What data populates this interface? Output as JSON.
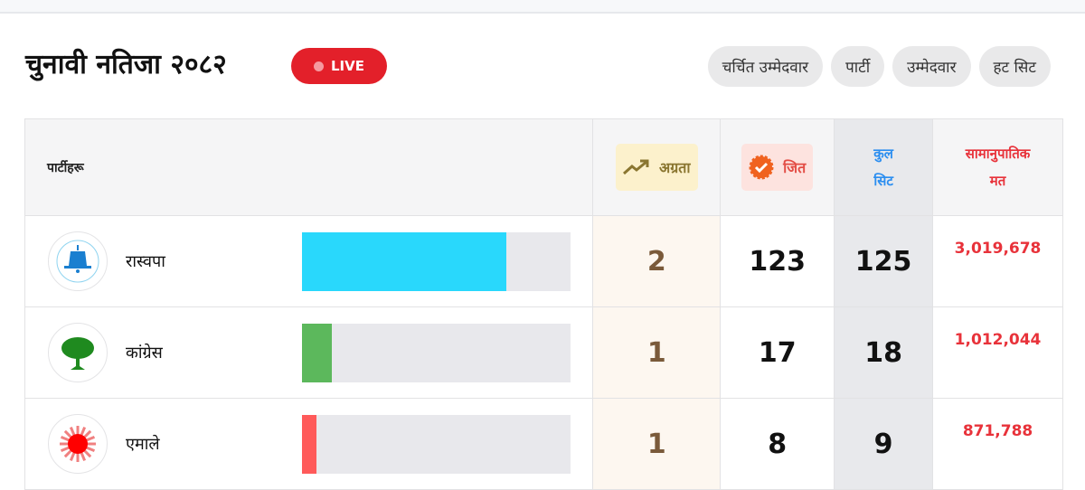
{
  "header": {
    "title": "चुनावी नतिजा २०८२",
    "live_label": "LIVE"
  },
  "tabs": [
    "चर्चित उम्मेदवार",
    "पार्टी",
    "उम्मेदवार",
    "हट सिट"
  ],
  "table": {
    "headers": {
      "party": "पार्टीहरू",
      "leading": "अग्रता",
      "won": "जित",
      "total_line1": "कुल",
      "total_line2": "सिट",
      "pr_line1": "सामानुपातिक",
      "pr_line2": "मत"
    },
    "rows": [
      {
        "name": "रास्वपा",
        "logo": "bell-icon",
        "bar_color": "#29d8fc",
        "bar_fraction": 0.76,
        "leading": "2",
        "won": "123",
        "total": "125",
        "pr_votes": "3,019,678"
      },
      {
        "name": "कांग्रेस",
        "logo": "tree-icon",
        "bar_color": "#5cb85c",
        "bar_fraction": 0.11,
        "leading": "1",
        "won": "17",
        "total": "18",
        "pr_votes": "1,012,044"
      },
      {
        "name": "एमाले",
        "logo": "sun-icon",
        "bar_color": "#ff5a5a",
        "bar_fraction": 0.055,
        "leading": "1",
        "won": "8",
        "total": "9",
        "pr_votes": "871,788"
      }
    ]
  }
}
